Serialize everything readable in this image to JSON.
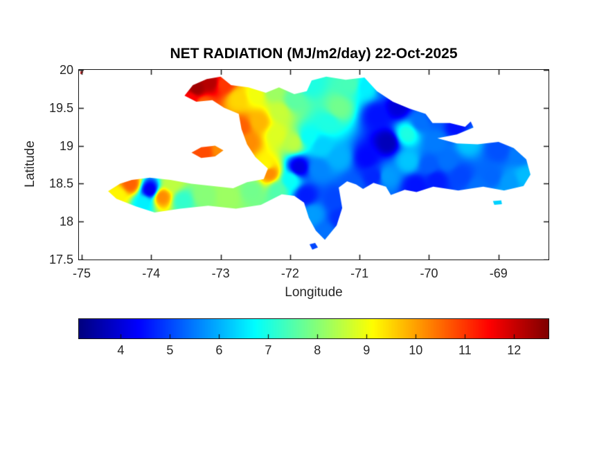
{
  "figure": {
    "title": "NET RADIATION (MJ/m2/day) 22-Oct-2025",
    "xlabel": "Longitude",
    "ylabel": "Latitude",
    "background_color": "#ffffff",
    "axis_color": "#151515",
    "text_color": "#262626",
    "corner_artifact_color": "#cc2222"
  },
  "chart_data": {
    "type": "heatmap",
    "title": "NET RADIATION (MJ/m2/day) 22-Oct-2025",
    "xlabel": "Longitude",
    "ylabel": "Latitude",
    "xlim": [
      -75.04,
      -68.28
    ],
    "ylim": [
      17.5,
      20.0
    ],
    "xticks": [
      -75,
      -74,
      -73,
      -72,
      -71,
      -70,
      -69
    ],
    "yticks": [
      20,
      19.5,
      19,
      18.5,
      18,
      17.5
    ],
    "grid": false,
    "colorbar": {
      "orientation": "horizontal",
      "colormap": "jet",
      "vmin": 3.15,
      "vmax": 12.7,
      "ticks": [
        4,
        5,
        6,
        7,
        8,
        9,
        10,
        11,
        12
      ]
    },
    "regions": {
      "main_island": [
        [
          -73.52,
          19.66
        ],
        [
          -73.4,
          19.8
        ],
        [
          -73.2,
          19.88
        ],
        [
          -73.0,
          19.91
        ],
        [
          -72.85,
          19.8
        ],
        [
          -72.6,
          19.77
        ],
        [
          -72.35,
          19.7
        ],
        [
          -72.16,
          19.77
        ],
        [
          -71.94,
          19.68
        ],
        [
          -71.76,
          19.72
        ],
        [
          -71.69,
          19.86
        ],
        [
          -71.48,
          19.91
        ],
        [
          -71.2,
          19.87
        ],
        [
          -70.93,
          19.9
        ],
        [
          -70.75,
          19.72
        ],
        [
          -70.52,
          19.58
        ],
        [
          -70.28,
          19.49
        ],
        [
          -70.05,
          19.42
        ],
        [
          -69.95,
          19.3
        ],
        [
          -69.7,
          19.3
        ],
        [
          -69.48,
          19.25
        ],
        [
          -69.4,
          19.32
        ],
        [
          -69.36,
          19.24
        ],
        [
          -69.6,
          19.15
        ],
        [
          -69.88,
          19.1
        ],
        [
          -69.6,
          19.03
        ],
        [
          -69.3,
          19.02
        ],
        [
          -69.0,
          19.05
        ],
        [
          -68.78,
          18.97
        ],
        [
          -68.6,
          18.82
        ],
        [
          -68.54,
          18.62
        ],
        [
          -68.64,
          18.47
        ],
        [
          -68.92,
          18.41
        ],
        [
          -69.22,
          18.46
        ],
        [
          -69.58,
          18.41
        ],
        [
          -69.94,
          18.46
        ],
        [
          -70.18,
          18.39
        ],
        [
          -70.35,
          18.42
        ],
        [
          -70.55,
          18.35
        ],
        [
          -70.62,
          18.46
        ],
        [
          -70.8,
          18.51
        ],
        [
          -70.95,
          18.43
        ],
        [
          -71.05,
          18.49
        ],
        [
          -71.18,
          18.53
        ],
        [
          -71.3,
          18.45
        ],
        [
          -71.25,
          18.18
        ],
        [
          -71.33,
          17.95
        ],
        [
          -71.5,
          17.76
        ],
        [
          -71.63,
          17.88
        ],
        [
          -71.73,
          18.05
        ],
        [
          -71.8,
          18.25
        ],
        [
          -71.94,
          18.34
        ],
        [
          -72.12,
          18.36
        ],
        [
          -72.42,
          18.22
        ],
        [
          -72.78,
          18.17
        ],
        [
          -73.18,
          18.21
        ],
        [
          -73.58,
          18.17
        ],
        [
          -73.95,
          18.12
        ],
        [
          -74.22,
          18.2
        ],
        [
          -74.5,
          18.3
        ],
        [
          -74.62,
          18.4
        ],
        [
          -74.45,
          18.5
        ],
        [
          -74.28,
          18.55
        ],
        [
          -74.02,
          18.58
        ],
        [
          -73.72,
          18.55
        ],
        [
          -73.42,
          18.5
        ],
        [
          -73.12,
          18.47
        ],
        [
          -72.82,
          18.44
        ],
        [
          -72.62,
          18.52
        ],
        [
          -72.38,
          18.56
        ],
        [
          -72.32,
          18.7
        ],
        [
          -72.5,
          18.85
        ],
        [
          -72.62,
          19.02
        ],
        [
          -72.7,
          19.22
        ],
        [
          -72.74,
          19.42
        ],
        [
          -72.95,
          19.5
        ],
        [
          -73.12,
          19.6
        ],
        [
          -73.35,
          19.58
        ]
      ],
      "gonave_island": [
        [
          -73.42,
          18.91
        ],
        [
          -73.28,
          18.98
        ],
        [
          -73.08,
          19.0
        ],
        [
          -72.96,
          18.94
        ],
        [
          -73.08,
          18.86
        ],
        [
          -73.28,
          18.84
        ]
      ],
      "beata_islet": [
        [
          -71.72,
          17.7
        ],
        [
          -71.64,
          17.72
        ],
        [
          -71.6,
          17.66
        ],
        [
          -71.68,
          17.63
        ]
      ],
      "saona_islet": [
        [
          -69.08,
          18.27
        ],
        [
          -68.96,
          18.28
        ],
        [
          -68.95,
          18.23
        ],
        [
          -69.06,
          18.22
        ]
      ]
    },
    "samples": [
      [
        -73.35,
        19.76,
        12.4
      ],
      [
        -73.15,
        19.84,
        12.2
      ],
      [
        -72.95,
        19.82,
        11.0
      ],
      [
        -73.44,
        19.62,
        11.5
      ],
      [
        -73.25,
        19.55,
        10.6
      ],
      [
        -72.75,
        19.62,
        9.5
      ],
      [
        -72.5,
        19.68,
        9.0
      ],
      [
        -72.25,
        19.72,
        8.2
      ],
      [
        -71.95,
        19.6,
        7.6
      ],
      [
        -71.73,
        19.82,
        7.0
      ],
      [
        -72.45,
        19.32,
        9.8
      ],
      [
        -72.7,
        19.25,
        10.6
      ],
      [
        -72.6,
        19.05,
        10.2
      ],
      [
        -72.15,
        19.45,
        8.6
      ],
      [
        -72.2,
        19.15,
        8.8
      ],
      [
        -71.95,
        19.05,
        8.5
      ],
      [
        -72.35,
        18.75,
        9.2
      ],
      [
        -72.3,
        18.64,
        10.2
      ],
      [
        -72.0,
        18.55,
        6.8
      ],
      [
        -72.18,
        18.42,
        7.5
      ],
      [
        -71.75,
        19.12,
        6.8
      ],
      [
        -71.55,
        19.0,
        6.3
      ],
      [
        -71.45,
        19.3,
        7.0
      ],
      [
        -71.3,
        19.5,
        7.8
      ],
      [
        -71.88,
        18.72,
        4.1
      ],
      [
        -71.6,
        18.7,
        5.6
      ],
      [
        -71.3,
        18.85,
        6.0
      ],
      [
        -71.15,
        19.82,
        7.4
      ],
      [
        -70.9,
        19.78,
        6.6
      ],
      [
        -70.62,
        19.8,
        5.2
      ],
      [
        -70.45,
        19.52,
        4.0
      ],
      [
        -70.75,
        19.4,
        4.5
      ],
      [
        -70.6,
        19.05,
        3.7
      ],
      [
        -70.9,
        18.85,
        4.4
      ],
      [
        -70.32,
        19.16,
        7.0
      ],
      [
        -70.12,
        19.32,
        5.4
      ],
      [
        -69.95,
        19.4,
        5.2
      ],
      [
        -69.6,
        19.24,
        4.5
      ],
      [
        -69.9,
        19.05,
        5.5
      ],
      [
        -69.45,
        19.05,
        6.2
      ],
      [
        -69.0,
        18.95,
        5.1
      ],
      [
        -68.7,
        18.88,
        5.5
      ],
      [
        -68.62,
        18.6,
        6.1
      ],
      [
        -69.1,
        18.6,
        5.3
      ],
      [
        -69.55,
        18.6,
        5.0
      ],
      [
        -69.9,
        18.55,
        4.6
      ],
      [
        -70.2,
        18.48,
        4.5
      ],
      [
        -70.6,
        18.6,
        5.8
      ],
      [
        -70.3,
        18.8,
        6.2
      ],
      [
        -70.0,
        18.75,
        5.2
      ],
      [
        -70.8,
        18.6,
        4.7
      ],
      [
        -69.75,
        18.8,
        5.4
      ],
      [
        -69.3,
        18.45,
        5.4
      ],
      [
        -68.85,
        18.52,
        5.8
      ],
      [
        -71.1,
        18.48,
        5.2
      ],
      [
        -71.35,
        18.3,
        5.0
      ],
      [
        -71.28,
        18.05,
        4.8
      ],
      [
        -71.5,
        17.85,
        5.4
      ],
      [
        -71.68,
        18.1,
        5.8
      ],
      [
        -71.78,
        18.35,
        4.6
      ],
      [
        -72.55,
        18.42,
        7.8
      ],
      [
        -72.9,
        18.33,
        8.2
      ],
      [
        -73.25,
        18.35,
        8.0
      ],
      [
        -73.55,
        18.28,
        7.2
      ],
      [
        -73.85,
        18.33,
        10.2
      ],
      [
        -74.02,
        18.42,
        4.2
      ],
      [
        -74.12,
        18.25,
        6.6
      ],
      [
        -74.3,
        18.5,
        10.6
      ],
      [
        -74.48,
        18.35,
        9.2
      ],
      [
        -73.7,
        18.52,
        8.5
      ],
      [
        -73.25,
        18.92,
        10.8
      ],
      [
        -73.0,
        18.95,
        10.2
      ],
      [
        -71.66,
        17.67,
        5.0
      ],
      [
        -69.0,
        18.25,
        6.3
      ]
    ]
  }
}
